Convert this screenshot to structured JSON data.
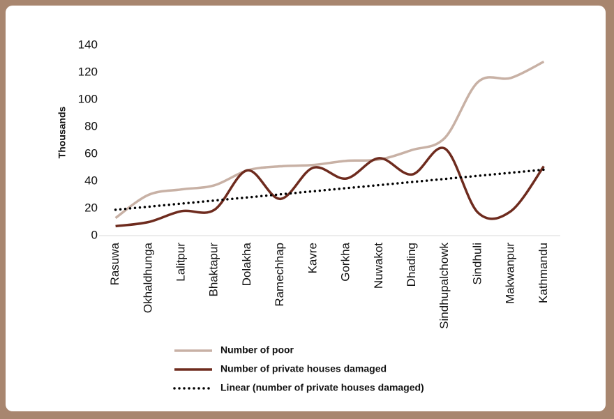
{
  "chart_data": {
    "type": "line",
    "ylabel": "Thousands",
    "categories": [
      "Rasuwa",
      "Okhaldhunga",
      "Lalitpur",
      "Bhaktapur",
      "Dolakha",
      "Ramechhap",
      "Kavre",
      "Gorkha",
      "Nuwakot",
      "Dhading",
      "Sindhupalchowk",
      "Sindhuli",
      "Makwanpur",
      "Kathmandu"
    ],
    "series": [
      {
        "name": "Number of poor",
        "color": "#c8b1a5",
        "values": [
          13,
          30,
          34,
          37,
          48,
          51,
          52,
          55,
          56,
          63,
          72,
          113,
          116,
          128
        ]
      },
      {
        "name": "Number of private houses damaged",
        "color": "#6e2b1e",
        "values": [
          7,
          10,
          18,
          19,
          48,
          27,
          50,
          42,
          57,
          45,
          64,
          17,
          18,
          51
        ]
      }
    ],
    "trendline": {
      "name": "Linear (number of private houses damaged)",
      "series": 1,
      "color": "#000000"
    },
    "ylim": [
      0,
      140
    ],
    "yticks": [
      0,
      20,
      40,
      60,
      80,
      100,
      120,
      140
    ],
    "grid": false
  }
}
